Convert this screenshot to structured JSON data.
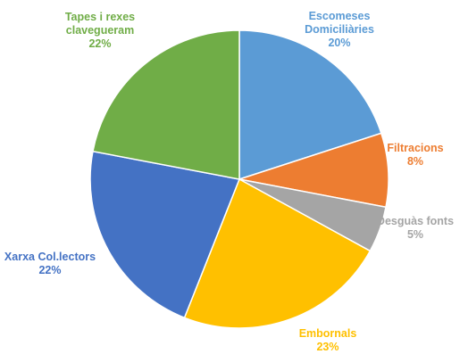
{
  "chart_data": {
    "type": "pie",
    "title": "",
    "start_angle_deg": 0,
    "direction": "clockwise",
    "legend": "none",
    "slices": [
      {
        "label_lines": [
          "Escomeses",
          "Domiciliàries"
        ],
        "value": 20,
        "value_label": "20%",
        "color": "#5B9BD5"
      },
      {
        "label_lines": [
          "Filtracions"
        ],
        "value": 8,
        "value_label": "8%",
        "color": "#ED7D31"
      },
      {
        "label_lines": [
          "Desguàs fonts"
        ],
        "value": 5,
        "value_label": "5%",
        "color": "#A5A5A5"
      },
      {
        "label_lines": [
          "Embornals"
        ],
        "value": 23,
        "value_label": "23%",
        "color": "#FFC000"
      },
      {
        "label_lines": [
          "Xarxa Col.lectors"
        ],
        "value": 22,
        "value_label": "22%",
        "color": "#4472C4"
      },
      {
        "label_lines": [
          "Tapes i rexes",
          "clavegueram"
        ],
        "value": 22,
        "value_label": "22%",
        "color": "#70AD47"
      }
    ]
  }
}
